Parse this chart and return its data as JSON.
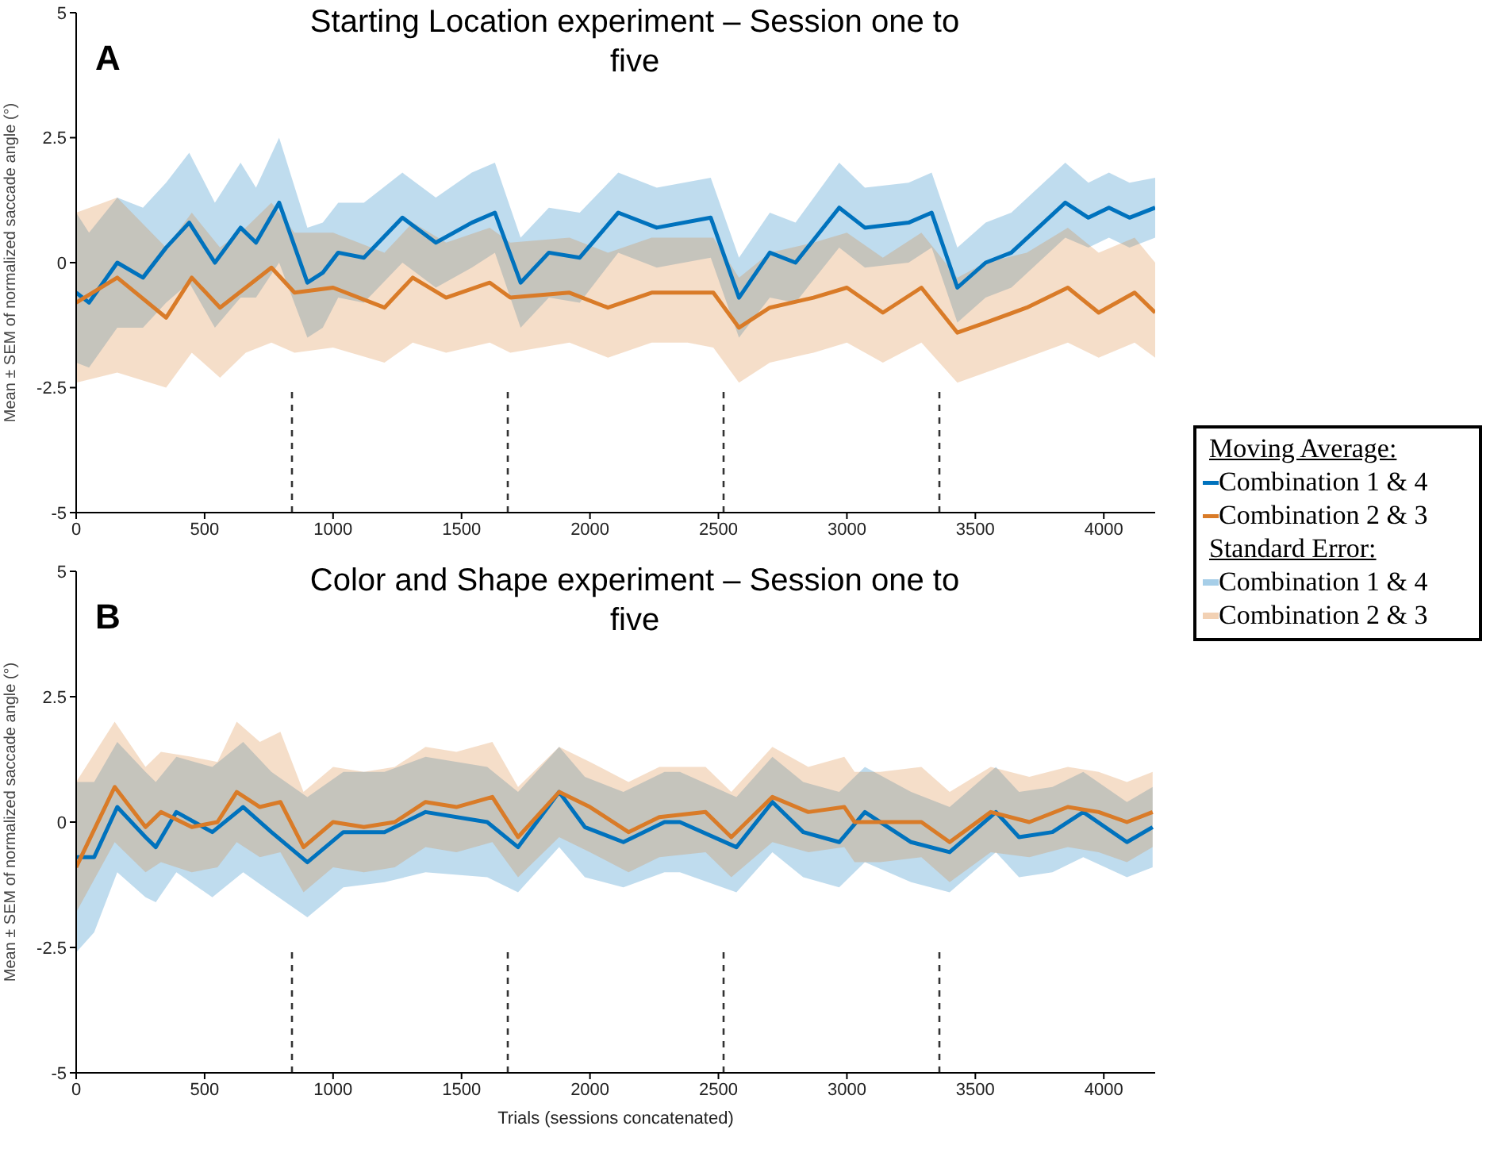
{
  "chart_data": [
    {
      "type": "line",
      "title": "Starting Location experiment – Session one to five",
      "ylabel": "Mean ± SEM of normalized saccade angle (°)",
      "legend_title": "Moving Average:",
      "annotations": [
        "A"
      ],
      "xlim": [
        0,
        4200
      ],
      "xticks": [
        0,
        500,
        1000,
        1500,
        2000,
        2500,
        3000,
        3500,
        4000
      ],
      "ylim": [
        -5,
        5
      ],
      "yticks": [
        -5,
        -2.5,
        0,
        2.5,
        5
      ],
      "legend": "bottom right",
      "line_style": "solid",
      "ref_lines": [
        {
          "axis": "x",
          "value": 840,
          "color": "#333333",
          "line_style": "dashed"
        },
        {
          "axis": "x",
          "value": 1680,
          "color": "#333333",
          "line_style": "dashed"
        },
        {
          "axis": "x",
          "value": 2520,
          "color": "#333333",
          "line_style": "dashed"
        },
        {
          "axis": "x",
          "value": 3360,
          "color": "#333333",
          "line_style": "dashed"
        }
      ],
      "series": [
        {
          "name": "Combination 1 & 4",
          "color": "#0072bd",
          "x": [
            0,
            50,
            160,
            260,
            350,
            440,
            540,
            640,
            700,
            790,
            900,
            960,
            1020,
            1120,
            1270,
            1400,
            1540,
            1630,
            1730,
            1840,
            1960,
            2110,
            2260,
            2470,
            2580,
            2700,
            2800,
            2970,
            3070,
            3240,
            3330,
            3430,
            3540,
            3640,
            3850,
            3940,
            4020,
            4100,
            4200
          ],
          "values": [
            -0.6,
            -0.8,
            0.0,
            -0.3,
            0.3,
            0.8,
            0.0,
            0.7,
            0.4,
            1.2,
            -0.4,
            -0.2,
            0.2,
            0.1,
            0.9,
            0.4,
            0.8,
            1.0,
            -0.4,
            0.2,
            0.1,
            1.0,
            0.7,
            0.9,
            -0.7,
            0.2,
            0.0,
            1.1,
            0.7,
            0.8,
            1.0,
            -0.5,
            0.0,
            0.2,
            1.2,
            0.9,
            1.1,
            0.9,
            1.1
          ],
          "lower": [
            -2.0,
            -2.1,
            -1.3,
            -1.3,
            -0.8,
            -0.4,
            -1.3,
            -0.7,
            -0.7,
            0.0,
            -1.5,
            -1.3,
            -0.7,
            -0.8,
            0.0,
            -0.5,
            -0.1,
            0.2,
            -1.3,
            -0.7,
            -0.8,
            0.2,
            -0.1,
            0.1,
            -1.5,
            -0.7,
            -0.8,
            0.3,
            -0.1,
            0.0,
            0.3,
            -1.2,
            -0.7,
            -0.5,
            0.5,
            0.3,
            0.5,
            0.3,
            0.5
          ],
          "upper": [
            1.0,
            0.6,
            1.3,
            1.1,
            1.6,
            2.2,
            1.2,
            2.0,
            1.5,
            2.5,
            0.7,
            0.8,
            1.2,
            1.2,
            1.8,
            1.3,
            1.8,
            2.0,
            0.5,
            1.1,
            1.0,
            1.8,
            1.5,
            1.7,
            0.1,
            1.0,
            0.8,
            2.0,
            1.5,
            1.6,
            1.8,
            0.3,
            0.8,
            1.0,
            2.0,
            1.6,
            1.8,
            1.6,
            1.7
          ]
        },
        {
          "name": "Combination 2 & 3",
          "color": "#d97b28",
          "x": [
            0,
            160,
            350,
            450,
            560,
            660,
            760,
            850,
            1000,
            1200,
            1310,
            1440,
            1610,
            1690,
            1920,
            2070,
            2240,
            2380,
            2480,
            2580,
            2700,
            2870,
            3000,
            3140,
            3290,
            3430,
            3540,
            3700,
            3860,
            3980,
            4120,
            4200
          ],
          "values": [
            -0.8,
            -0.3,
            -1.1,
            -0.3,
            -0.9,
            -0.5,
            -0.1,
            -0.6,
            -0.5,
            -0.9,
            -0.3,
            -0.7,
            -0.4,
            -0.7,
            -0.6,
            -0.9,
            -0.6,
            -0.6,
            -0.6,
            -1.3,
            -0.9,
            -0.7,
            -0.5,
            -1.0,
            -0.5,
            -1.4,
            -1.2,
            -0.9,
            -0.5,
            -1.0,
            -0.6,
            -1.0
          ],
          "lower": [
            -2.4,
            -2.2,
            -2.5,
            -1.8,
            -2.3,
            -1.8,
            -1.6,
            -1.8,
            -1.7,
            -2.0,
            -1.6,
            -1.8,
            -1.6,
            -1.8,
            -1.6,
            -1.9,
            -1.6,
            -1.6,
            -1.7,
            -2.4,
            -2.0,
            -1.8,
            -1.6,
            -2.0,
            -1.6,
            -2.4,
            -2.2,
            -1.9,
            -1.6,
            -1.9,
            -1.6,
            -1.9
          ],
          "upper": [
            1.0,
            1.3,
            0.3,
            1.0,
            0.3,
            0.7,
            1.2,
            0.6,
            0.6,
            0.2,
            0.8,
            0.4,
            0.7,
            0.4,
            0.5,
            0.2,
            0.5,
            0.5,
            0.5,
            -0.3,
            0.2,
            0.4,
            0.6,
            0.1,
            0.6,
            -0.3,
            0.0,
            0.2,
            0.7,
            0.2,
            0.5,
            0.0
          ]
        }
      ]
    },
    {
      "type": "line",
      "title": "Color and Shape experiment – Session one to five",
      "ylabel": "Mean ± SEM of normalized saccade angle (°)",
      "xlabel": "Trials (sessions concatenated)",
      "annotations": [
        "B"
      ],
      "legend": "top right",
      "legend_title": "Standard Error:",
      "xlim": [
        0,
        4200
      ],
      "xticks": [
        0,
        500,
        1000,
        1500,
        2000,
        2500,
        3000,
        3500,
        4000
      ],
      "ylim": [
        -5,
        5
      ],
      "yticks": [
        -5,
        -2.5,
        0,
        2.5,
        5
      ],
      "line_style": "solid",
      "ref_lines": [
        {
          "axis": "x",
          "value": 840,
          "color": "#333333",
          "line_style": "dashed"
        },
        {
          "axis": "x",
          "value": 1680,
          "color": "#333333",
          "line_style": "dashed"
        },
        {
          "axis": "x",
          "value": 2520,
          "color": "#333333",
          "line_style": "dashed"
        },
        {
          "axis": "x",
          "value": 3360,
          "color": "#333333",
          "line_style": "dashed"
        }
      ],
      "series": [
        {
          "name": "Combination 1 & 4",
          "color": "#0072bd",
          "x": [
            0,
            70,
            160,
            270,
            310,
            390,
            530,
            650,
            760,
            900,
            1040,
            1200,
            1360,
            1600,
            1720,
            1880,
            1980,
            2130,
            2290,
            2350,
            2570,
            2710,
            2830,
            2970,
            3070,
            3250,
            3400,
            3580,
            3670,
            3800,
            3920,
            4090,
            4190
          ],
          "values": [
            -0.7,
            -0.7,
            0.3,
            -0.3,
            -0.5,
            0.2,
            -0.2,
            0.3,
            -0.2,
            -0.8,
            -0.2,
            -0.2,
            0.2,
            0.0,
            -0.5,
            0.6,
            -0.1,
            -0.4,
            0.0,
            0.0,
            -0.5,
            0.4,
            -0.2,
            -0.4,
            0.2,
            -0.4,
            -0.6,
            0.2,
            -0.3,
            -0.2,
            0.2,
            -0.4,
            -0.1
          ],
          "lower": [
            -2.6,
            -2.2,
            -1.0,
            -1.5,
            -1.6,
            -1.0,
            -1.5,
            -1.0,
            -1.4,
            -1.9,
            -1.3,
            -1.2,
            -1.0,
            -1.1,
            -1.4,
            -0.5,
            -1.1,
            -1.3,
            -1.0,
            -1.0,
            -1.4,
            -0.6,
            -1.1,
            -1.3,
            -0.8,
            -1.2,
            -1.4,
            -0.6,
            -1.1,
            -1.0,
            -0.7,
            -1.1,
            -0.9
          ],
          "upper": [
            0.8,
            0.8,
            1.6,
            1.0,
            0.8,
            1.3,
            1.1,
            1.6,
            1.0,
            0.5,
            1.0,
            1.0,
            1.3,
            1.1,
            0.6,
            1.5,
            0.9,
            0.6,
            1.0,
            1.0,
            0.5,
            1.3,
            0.8,
            0.6,
            1.1,
            0.6,
            0.3,
            1.1,
            0.6,
            0.7,
            1.0,
            0.4,
            0.7
          ]
        },
        {
          "name": "Combination 2 & 3",
          "color": "#d97b28",
          "x": [
            0,
            150,
            270,
            330,
            450,
            550,
            625,
            715,
            795,
            885,
            1000,
            1120,
            1240,
            1360,
            1480,
            1620,
            1720,
            1880,
            2000,
            2150,
            2270,
            2450,
            2550,
            2710,
            2850,
            2990,
            3030,
            3130,
            3290,
            3400,
            3560,
            3710,
            3860,
            3980,
            4090,
            4190
          ],
          "values": [
            -0.9,
            0.7,
            -0.1,
            0.2,
            -0.1,
            0.0,
            0.6,
            0.3,
            0.4,
            -0.5,
            0.0,
            -0.1,
            0.0,
            0.4,
            0.3,
            0.5,
            -0.3,
            0.6,
            0.3,
            -0.2,
            0.1,
            0.2,
            -0.3,
            0.5,
            0.2,
            0.3,
            0.0,
            0.0,
            0.0,
            -0.4,
            0.2,
            0.0,
            0.3,
            0.2,
            0.0,
            0.2
          ],
          "lower": [
            -1.8,
            -0.4,
            -1.0,
            -0.8,
            -1.0,
            -0.9,
            -0.4,
            -0.7,
            -0.6,
            -1.4,
            -0.9,
            -1.0,
            -0.9,
            -0.5,
            -0.6,
            -0.4,
            -1.1,
            -0.3,
            -0.6,
            -1.0,
            -0.7,
            -0.6,
            -1.1,
            -0.4,
            -0.6,
            -0.5,
            -0.8,
            -0.8,
            -0.7,
            -1.2,
            -0.6,
            -0.7,
            -0.5,
            -0.6,
            -0.8,
            -0.5
          ],
          "upper": [
            0.8,
            2.0,
            1.1,
            1.4,
            1.3,
            1.2,
            2.0,
            1.6,
            1.8,
            0.6,
            1.1,
            1.0,
            1.1,
            1.5,
            1.4,
            1.6,
            0.7,
            1.5,
            1.2,
            0.8,
            1.1,
            1.1,
            0.6,
            1.5,
            1.1,
            1.3,
            1.0,
            1.0,
            1.1,
            0.6,
            1.1,
            0.9,
            1.1,
            1.0,
            0.8,
            1.0
          ]
        }
      ]
    }
  ]
}
